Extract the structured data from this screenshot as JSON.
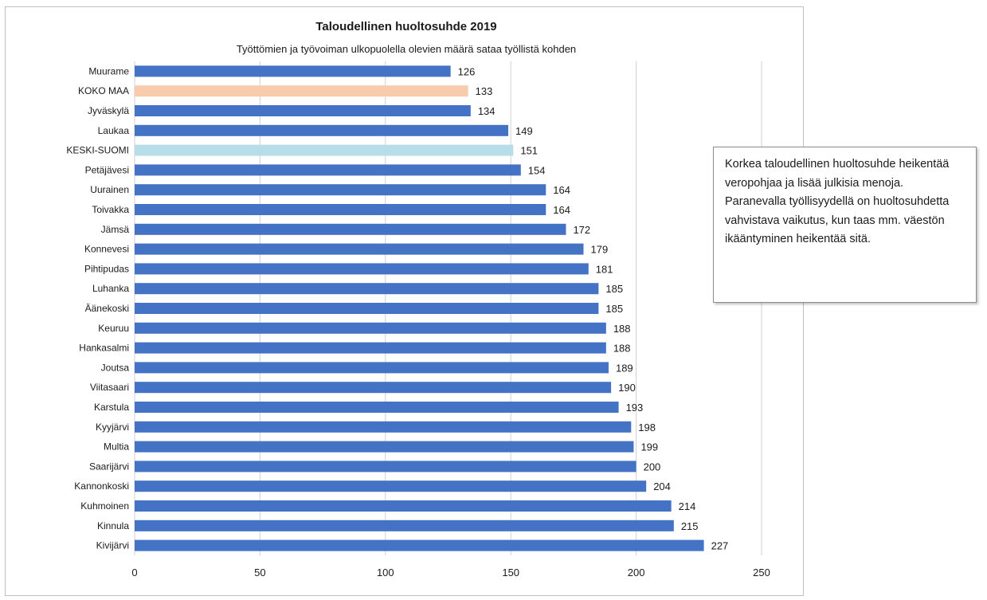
{
  "chart_data": {
    "type": "bar",
    "orientation": "horizontal",
    "title": "Taloudellinen huoltosuhde 2019",
    "subtitle": "Työttömien ja työvoiman ulkopuolella olevien määrä sataa työllistä kohden",
    "categories": [
      "Muurame",
      "KOKO MAA",
      "Jyväskylä",
      "Laukaa",
      "KESKI-SUOMI",
      "Petäjävesi",
      "Uurainen",
      "Toivakka",
      "Jämsä",
      "Konnevesi",
      "Pihtipudas",
      "Luhanka",
      "Äänekoski",
      "Keuruu",
      "Hankasalmi",
      "Joutsa",
      "Viitasaari",
      "Karstula",
      "Kyyjärvi",
      "Multia",
      "Saarijärvi",
      "Kannonkoski",
      "Kuhmoinen",
      "Kinnula",
      "Kivijärvi"
    ],
    "values": [
      126,
      133,
      134,
      149,
      151,
      154,
      164,
      164,
      172,
      179,
      181,
      185,
      185,
      188,
      188,
      189,
      190,
      193,
      198,
      199,
      200,
      204,
      214,
      215,
      227
    ],
    "xlim": [
      0,
      250
    ],
    "xticks": [
      0,
      50,
      100,
      150,
      200,
      250
    ],
    "grid": "vertical",
    "colors": {
      "default": "#4472c4",
      "KOKO MAA": "#f8cbad",
      "KESKI-SUOMI": "#b7dee8"
    }
  },
  "note": {
    "text": "Korkea taloudellinen huoltosuhde heikentää veropohjaa ja lisää julkisia menoja. Paranevalla työllisyydellä on huoltosuhdetta vahvistava vaikutus, kun taas mm. väestön ikääntyminen heikentää sitä."
  }
}
